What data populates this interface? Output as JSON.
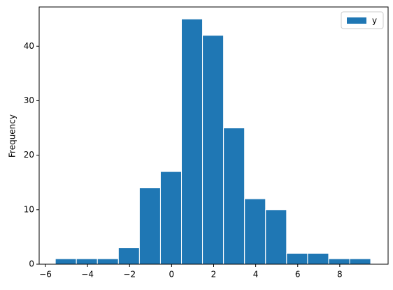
{
  "chart_data": {
    "type": "histogram",
    "ylabel": "Frequency",
    "bins": [
      -5.53,
      -4.53,
      -3.53,
      -2.53,
      -1.53,
      -0.53,
      0.47,
      1.47,
      2.47,
      3.47,
      4.47,
      5.47,
      6.47,
      7.47,
      8.47,
      9.47
    ],
    "series": [
      {
        "name": "y",
        "color": "#1f77b4",
        "values": [
          1,
          1,
          1,
          3,
          14,
          17,
          45,
          42,
          25,
          12,
          10,
          2,
          2,
          1,
          1
        ]
      }
    ],
    "xlim": [
      -6.3,
      10.3
    ],
    "ylim": [
      0,
      47.2
    ],
    "xticks": [
      {
        "value": -6,
        "label": "−6"
      },
      {
        "value": -4,
        "label": "−4"
      },
      {
        "value": -2,
        "label": "−2"
      },
      0,
      2,
      4,
      6,
      8
    ],
    "yticks": [
      0,
      10,
      20,
      30,
      40
    ],
    "legend": "upper right"
  }
}
